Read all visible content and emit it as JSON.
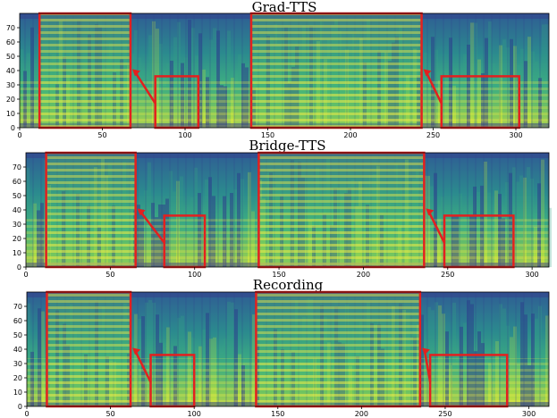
{
  "chart_data": [
    {
      "type": "heatmap",
      "title": "Grad-TTS",
      "xlim": [
        0,
        320
      ],
      "ylim": [
        0,
        80
      ],
      "xticks": [
        "0",
        "50",
        "100",
        "150",
        "200",
        "250",
        "300"
      ],
      "yticks": [
        "0",
        "10",
        "20",
        "30",
        "40",
        "50",
        "60",
        "70"
      ],
      "annotations": [
        {
          "kind": "zoom-box",
          "x": [
            82,
            108
          ],
          "y": [
            0,
            36
          ]
        },
        {
          "kind": "zoom-box",
          "x": [
            255,
            302
          ],
          "y": [
            0,
            36
          ]
        },
        {
          "kind": "inset",
          "x": [
            12,
            67
          ],
          "y": [
            0,
            80
          ]
        },
        {
          "kind": "inset",
          "x": [
            140,
            243
          ],
          "y": [
            0,
            80
          ]
        }
      ]
    },
    {
      "type": "heatmap",
      "title": "Bridge-TTS",
      "xlim": [
        0,
        310
      ],
      "ylim": [
        0,
        80
      ],
      "xticks": [
        "0",
        "50",
        "100",
        "150",
        "200",
        "250",
        "300"
      ],
      "yticks": [
        "0",
        "10",
        "20",
        "30",
        "40",
        "50",
        "60",
        "70"
      ],
      "annotations": [
        {
          "kind": "zoom-box",
          "x": [
            82,
            106
          ],
          "y": [
            0,
            36
          ]
        },
        {
          "kind": "zoom-box",
          "x": [
            248,
            289
          ],
          "y": [
            0,
            36
          ]
        },
        {
          "kind": "inset",
          "x": [
            12,
            65
          ],
          "y": [
            0,
            80
          ]
        },
        {
          "kind": "inset",
          "x": [
            138,
            236
          ],
          "y": [
            0,
            80
          ]
        }
      ]
    },
    {
      "type": "heatmap",
      "title": "Recording",
      "xlim": [
        0,
        312
      ],
      "ylim": [
        0,
        80
      ],
      "xticks": [
        "0",
        "50",
        "100",
        "150",
        "200",
        "250",
        "300"
      ],
      "yticks": [
        "0",
        "10",
        "20",
        "30",
        "40",
        "50",
        "60",
        "70"
      ],
      "annotations": [
        {
          "kind": "zoom-box",
          "x": [
            74,
            100
          ],
          "y": [
            0,
            36
          ]
        },
        {
          "kind": "zoom-box",
          "x": [
            241,
            287
          ],
          "y": [
            0,
            36
          ]
        },
        {
          "kind": "inset",
          "x": [
            12,
            62
          ],
          "y": [
            0,
            80
          ]
        },
        {
          "kind": "inset",
          "x": [
            137,
            235
          ],
          "y": [
            0,
            80
          ]
        }
      ]
    }
  ],
  "colors": {
    "low": "#2b3a8a",
    "mid": "#2a9b8a",
    "high": "#e6e93a",
    "box": "#e3201f"
  }
}
